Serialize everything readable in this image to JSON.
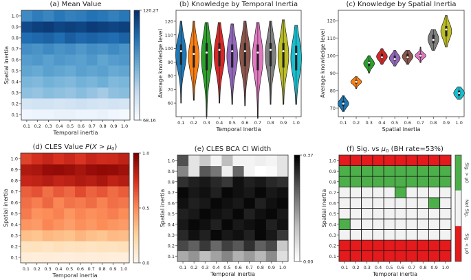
{
  "figure": {
    "colors": {
      "blues_low": "#f7fbff",
      "blues_high": "#08306b",
      "reds_low": "#fff5eb",
      "reds_high": "#7f0000",
      "greys_low": "#ffffff",
      "greys_high": "#000000",
      "sig_above": "#4daf4a",
      "sig_below": "#e41a1c",
      "not_sig": "#f2f2f2",
      "violins": [
        "#1f77b4",
        "#ff7f0e",
        "#2ca02c",
        "#d62728",
        "#9467bd",
        "#8c564b",
        "#e377c2",
        "#7f7f7f",
        "#bcbd22",
        "#17becf"
      ]
    }
  },
  "chart_data": [
    {
      "type": "heatmap",
      "title": "(a) Mean Value",
      "xlabel": "Temporal inertia",
      "ylabel": "Spatial inertia",
      "x_ticks": [
        "0.1",
        "0.2",
        "0.3",
        "0.4",
        "0.5",
        "0.6",
        "0.7",
        "0.8",
        "0.9",
        "1.0"
      ],
      "y_ticks": [
        "0.1",
        "0.2",
        "0.3",
        "0.4",
        "0.5",
        "0.6",
        "0.7",
        "0.8",
        "0.9",
        "1.0"
      ],
      "colorbar": {
        "min": 68.16,
        "max": 120.27,
        "min_label": "68.16",
        "max_label": "120.27"
      },
      "values": [
        [
          70,
          71,
          71,
          72,
          72,
          71,
          71,
          72,
          70,
          69
        ],
        [
          77,
          78,
          78,
          77,
          78,
          79,
          78,
          77,
          78,
          77
        ],
        [
          89,
          88,
          90,
          89,
          88,
          90,
          88,
          86,
          89,
          90
        ],
        [
          92,
          91,
          93,
          92,
          91,
          93,
          92,
          94,
          91,
          92
        ],
        [
          96,
          95,
          97,
          96,
          95,
          97,
          96,
          97,
          95,
          96
        ],
        [
          98,
          99,
          97,
          99,
          98,
          97,
          99,
          96,
          98,
          99
        ],
        [
          101,
          100,
          102,
          100,
          101,
          99,
          101,
          100,
          102,
          100
        ],
        [
          108,
          109,
          110,
          108,
          111,
          109,
          110,
          109,
          108,
          110
        ],
        [
          115,
          117,
          118,
          116,
          117,
          116,
          118,
          117,
          116,
          117
        ],
        [
          102,
          105,
          103,
          106,
          104,
          105,
          107,
          106,
          104,
          106
        ]
      ]
    },
    {
      "type": "violin",
      "title": "(b) Knowledge by Temporal Inertia",
      "xlabel": "Temporal inertia",
      "ylabel": "Average knowledge level",
      "categories": [
        "0.1",
        "0.2",
        "0.3",
        "0.4",
        "0.5",
        "0.6",
        "0.7",
        "0.8",
        "0.9",
        "1.0"
      ],
      "ylim": [
        50,
        128
      ],
      "y_ticks": [
        60,
        70,
        80,
        90,
        100,
        110,
        120
      ],
      "violins": [
        {
          "min": 60,
          "max": 120,
          "q1": 88,
          "q3": 103,
          "median": 98
        },
        {
          "min": 62,
          "max": 120,
          "q1": 86,
          "q3": 102,
          "median": 96
        },
        {
          "min": 50,
          "max": 119,
          "q1": 84,
          "q3": 104,
          "median": 97
        },
        {
          "min": 60,
          "max": 119,
          "q1": 87,
          "q3": 104,
          "median": 99
        },
        {
          "min": 59,
          "max": 118,
          "q1": 86,
          "q3": 103,
          "median": 98
        },
        {
          "min": 58,
          "max": 120,
          "q1": 87,
          "q3": 104,
          "median": 98
        },
        {
          "min": 49,
          "max": 119,
          "q1": 84,
          "q3": 103,
          "median": 97
        },
        {
          "min": 59,
          "max": 120,
          "q1": 87,
          "q3": 104,
          "median": 99
        },
        {
          "min": 59,
          "max": 121,
          "q1": 86,
          "q3": 104,
          "median": 98
        },
        {
          "min": 59,
          "max": 117,
          "q1": 84,
          "q3": 102,
          "median": 96
        }
      ]
    },
    {
      "type": "violin",
      "title": "(c) Knowledge by Spatial Inertia",
      "xlabel": "Spatial inertia",
      "ylabel": "Average knowledge level",
      "categories": [
        "0.1",
        "0.2",
        "0.3",
        "0.4",
        "0.5",
        "0.6",
        "0.7",
        "0.8",
        "0.9",
        "1.0"
      ],
      "ylim": [
        65,
        126
      ],
      "y_ticks": [
        70,
        80,
        90,
        100,
        110,
        120
      ],
      "violins": [
        {
          "min": 68,
          "max": 77,
          "q1": 71,
          "q3": 74,
          "median": 72.5
        },
        {
          "min": 81,
          "max": 88,
          "q1": 84,
          "q3": 86,
          "median": 85
        },
        {
          "min": 90,
          "max": 100,
          "q1": 94,
          "q3": 97,
          "median": 96
        },
        {
          "min": 95,
          "max": 104,
          "q1": 98,
          "q3": 101,
          "median": 99
        },
        {
          "min": 94,
          "max": 103,
          "q1": 97,
          "q3": 100,
          "median": 98
        },
        {
          "min": 95,
          "max": 103,
          "q1": 98,
          "q3": 101,
          "median": 99
        },
        {
          "min": 96,
          "max": 105,
          "q1": 99,
          "q3": 101,
          "median": 100
        },
        {
          "min": 103,
          "max": 115,
          "q1": 107,
          "q3": 112,
          "median": 109
        },
        {
          "min": 105,
          "max": 123,
          "q1": 111,
          "q3": 117,
          "median": 115
        },
        {
          "min": 75,
          "max": 82,
          "q1": 77,
          "q3": 80,
          "median": 78.5
        }
      ]
    },
    {
      "type": "heatmap",
      "title": "(d) CLES Value P(X > μ0)",
      "title_parts": {
        "prefix": "(d) CLES Value ",
        "p": "P",
        "paren_open": "(",
        "x": "X",
        "gt": " > ",
        "mu": "μ",
        "sub": "0",
        "paren_close": ")"
      },
      "xlabel": "Temporal inertia",
      "ylabel": "Spatial inertia",
      "x_ticks": [
        "0.1",
        "0.2",
        "0.3",
        "0.4",
        "0.5",
        "0.6",
        "0.7",
        "0.8",
        "0.9",
        "1.0"
      ],
      "y_ticks": [
        "0.1",
        "0.2",
        "0.3",
        "0.4",
        "0.5",
        "0.6",
        "0.7",
        "0.8",
        "0.9",
        "1.0"
      ],
      "colorbar": {
        "min": 0.0,
        "max": 1.0,
        "ticks": [
          "0.0",
          "0.5",
          "1.0"
        ]
      },
      "values": [
        [
          0.06,
          0.05,
          0.06,
          0.05,
          0.05,
          0.06,
          0.05,
          0.06,
          0.05,
          0.05
        ],
        [
          0.14,
          0.15,
          0.13,
          0.16,
          0.14,
          0.15,
          0.13,
          0.15,
          0.14,
          0.16
        ],
        [
          0.32,
          0.3,
          0.35,
          0.33,
          0.31,
          0.36,
          0.32,
          0.3,
          0.34,
          0.33
        ],
        [
          0.47,
          0.45,
          0.52,
          0.48,
          0.44,
          0.49,
          0.46,
          0.5,
          0.47,
          0.45
        ],
        [
          0.55,
          0.48,
          0.5,
          0.53,
          0.47,
          0.52,
          0.49,
          0.51,
          0.54,
          0.5
        ],
        [
          0.58,
          0.54,
          0.6,
          0.52,
          0.57,
          0.55,
          0.59,
          0.53,
          0.58,
          0.56
        ],
        [
          0.62,
          0.66,
          0.58,
          0.64,
          0.6,
          0.68,
          0.61,
          0.65,
          0.59,
          0.63
        ],
        [
          0.8,
          0.82,
          0.85,
          0.81,
          0.83,
          0.86,
          0.84,
          0.88,
          0.82,
          0.85
        ],
        [
          0.86,
          0.88,
          0.93,
          0.94,
          0.92,
          0.89,
          0.93,
          0.95,
          0.94,
          0.91
        ],
        [
          0.7,
          0.76,
          0.8,
          0.75,
          0.79,
          0.74,
          0.8,
          0.77,
          0.78,
          0.82
        ]
      ]
    },
    {
      "type": "heatmap",
      "title": "(e) CLES BCA CI Width",
      "xlabel": "Temporal inertia",
      "ylabel": "Spatial inertia",
      "x_ticks": [
        "0.1",
        "0.2",
        "0.3",
        "0.4",
        "0.5",
        "0.6",
        "0.7",
        "0.8",
        "0.9",
        "1.0"
      ],
      "y_ticks": [
        "0.1",
        "0.2",
        "0.3",
        "0.4",
        "0.5",
        "0.6",
        "0.7",
        "0.8",
        "0.9",
        "1.0"
      ],
      "colorbar": {
        "min": 0.0,
        "max": 0.37,
        "ticks": [
          "0.00",
          "0.37"
        ]
      },
      "values": [
        [
          0.15,
          0.18,
          0.12,
          0.16,
          0.2,
          0.14,
          0.17,
          0.13,
          0.19,
          0.06
        ],
        [
          0.28,
          0.25,
          0.3,
          0.24,
          0.29,
          0.26,
          0.31,
          0.25,
          0.28,
          0.1
        ],
        [
          0.32,
          0.35,
          0.33,
          0.36,
          0.34,
          0.35,
          0.33,
          0.36,
          0.34,
          0.3
        ],
        [
          0.34,
          0.36,
          0.35,
          0.33,
          0.36,
          0.34,
          0.35,
          0.36,
          0.33,
          0.35
        ],
        [
          0.33,
          0.34,
          0.36,
          0.35,
          0.34,
          0.36,
          0.33,
          0.35,
          0.36,
          0.34
        ],
        [
          0.35,
          0.33,
          0.34,
          0.36,
          0.35,
          0.34,
          0.36,
          0.33,
          0.35,
          0.36
        ],
        [
          0.36,
          0.34,
          0.35,
          0.33,
          0.36,
          0.35,
          0.34,
          0.36,
          0.34,
          0.35
        ],
        [
          0.31,
          0.33,
          0.34,
          0.32,
          0.3,
          0.35,
          0.33,
          0.34,
          0.32,
          0.31
        ],
        [
          0.2,
          0.05,
          0.26,
          0.22,
          0.03,
          0.24,
          0.02,
          0.0,
          0.01,
          0.05
        ],
        [
          0.27,
          0.05,
          0.1,
          0.02,
          0.12,
          0.02,
          0.02,
          0.03,
          0.02,
          0.05
        ]
      ]
    },
    {
      "type": "heatmap",
      "title": "(f) Sig. vs μ0 (BH rate=53%)",
      "title_parts": {
        "prefix": "(f) Sig. vs ",
        "mu": "μ",
        "sub": "0",
        "suffix": " (BH rate=53%)"
      },
      "xlabel": "Temporal inertia",
      "ylabel": "Spatial inertia",
      "x_ticks": [
        "0.1",
        "0.2",
        "0.3",
        "0.4",
        "0.5",
        "0.6",
        "0.7",
        "0.8",
        "0.9",
        "1.0"
      ],
      "y_ticks": [
        "0.1",
        "0.2",
        "0.3",
        "0.4",
        "0.5",
        "0.6",
        "0.7",
        "0.8",
        "0.9",
        "1.0"
      ],
      "legend_labels": {
        "above": "Sig. > μ0",
        "none": "Not Sig.",
        "below": "Sig. < μ0"
      },
      "values": [
        [
          -1,
          -1,
          -1,
          -1,
          -1,
          -1,
          -1,
          -1,
          -1,
          -1
        ],
        [
          -1,
          -1,
          -1,
          -1,
          -1,
          -1,
          -1,
          -1,
          -1,
          -1
        ],
        [
          0,
          0,
          0,
          0,
          0,
          0,
          0,
          0,
          0,
          0
        ],
        [
          1,
          0,
          0,
          0,
          0,
          0,
          0,
          0,
          0,
          0
        ],
        [
          0,
          0,
          0,
          0,
          0,
          0,
          0,
          0,
          0,
          0
        ],
        [
          0,
          0,
          0,
          0,
          0,
          0,
          0,
          0,
          1,
          0
        ],
        [
          0,
          0,
          0,
          0,
          0,
          1,
          0,
          0,
          0,
          0
        ],
        [
          1,
          1,
          1,
          1,
          1,
          1,
          1,
          1,
          1,
          1
        ],
        [
          1,
          1,
          1,
          1,
          1,
          1,
          1,
          1,
          1,
          1
        ],
        [
          -1,
          -1,
          -1,
          -1,
          -1,
          -1,
          -1,
          -1,
          -1,
          -1
        ]
      ]
    }
  ]
}
